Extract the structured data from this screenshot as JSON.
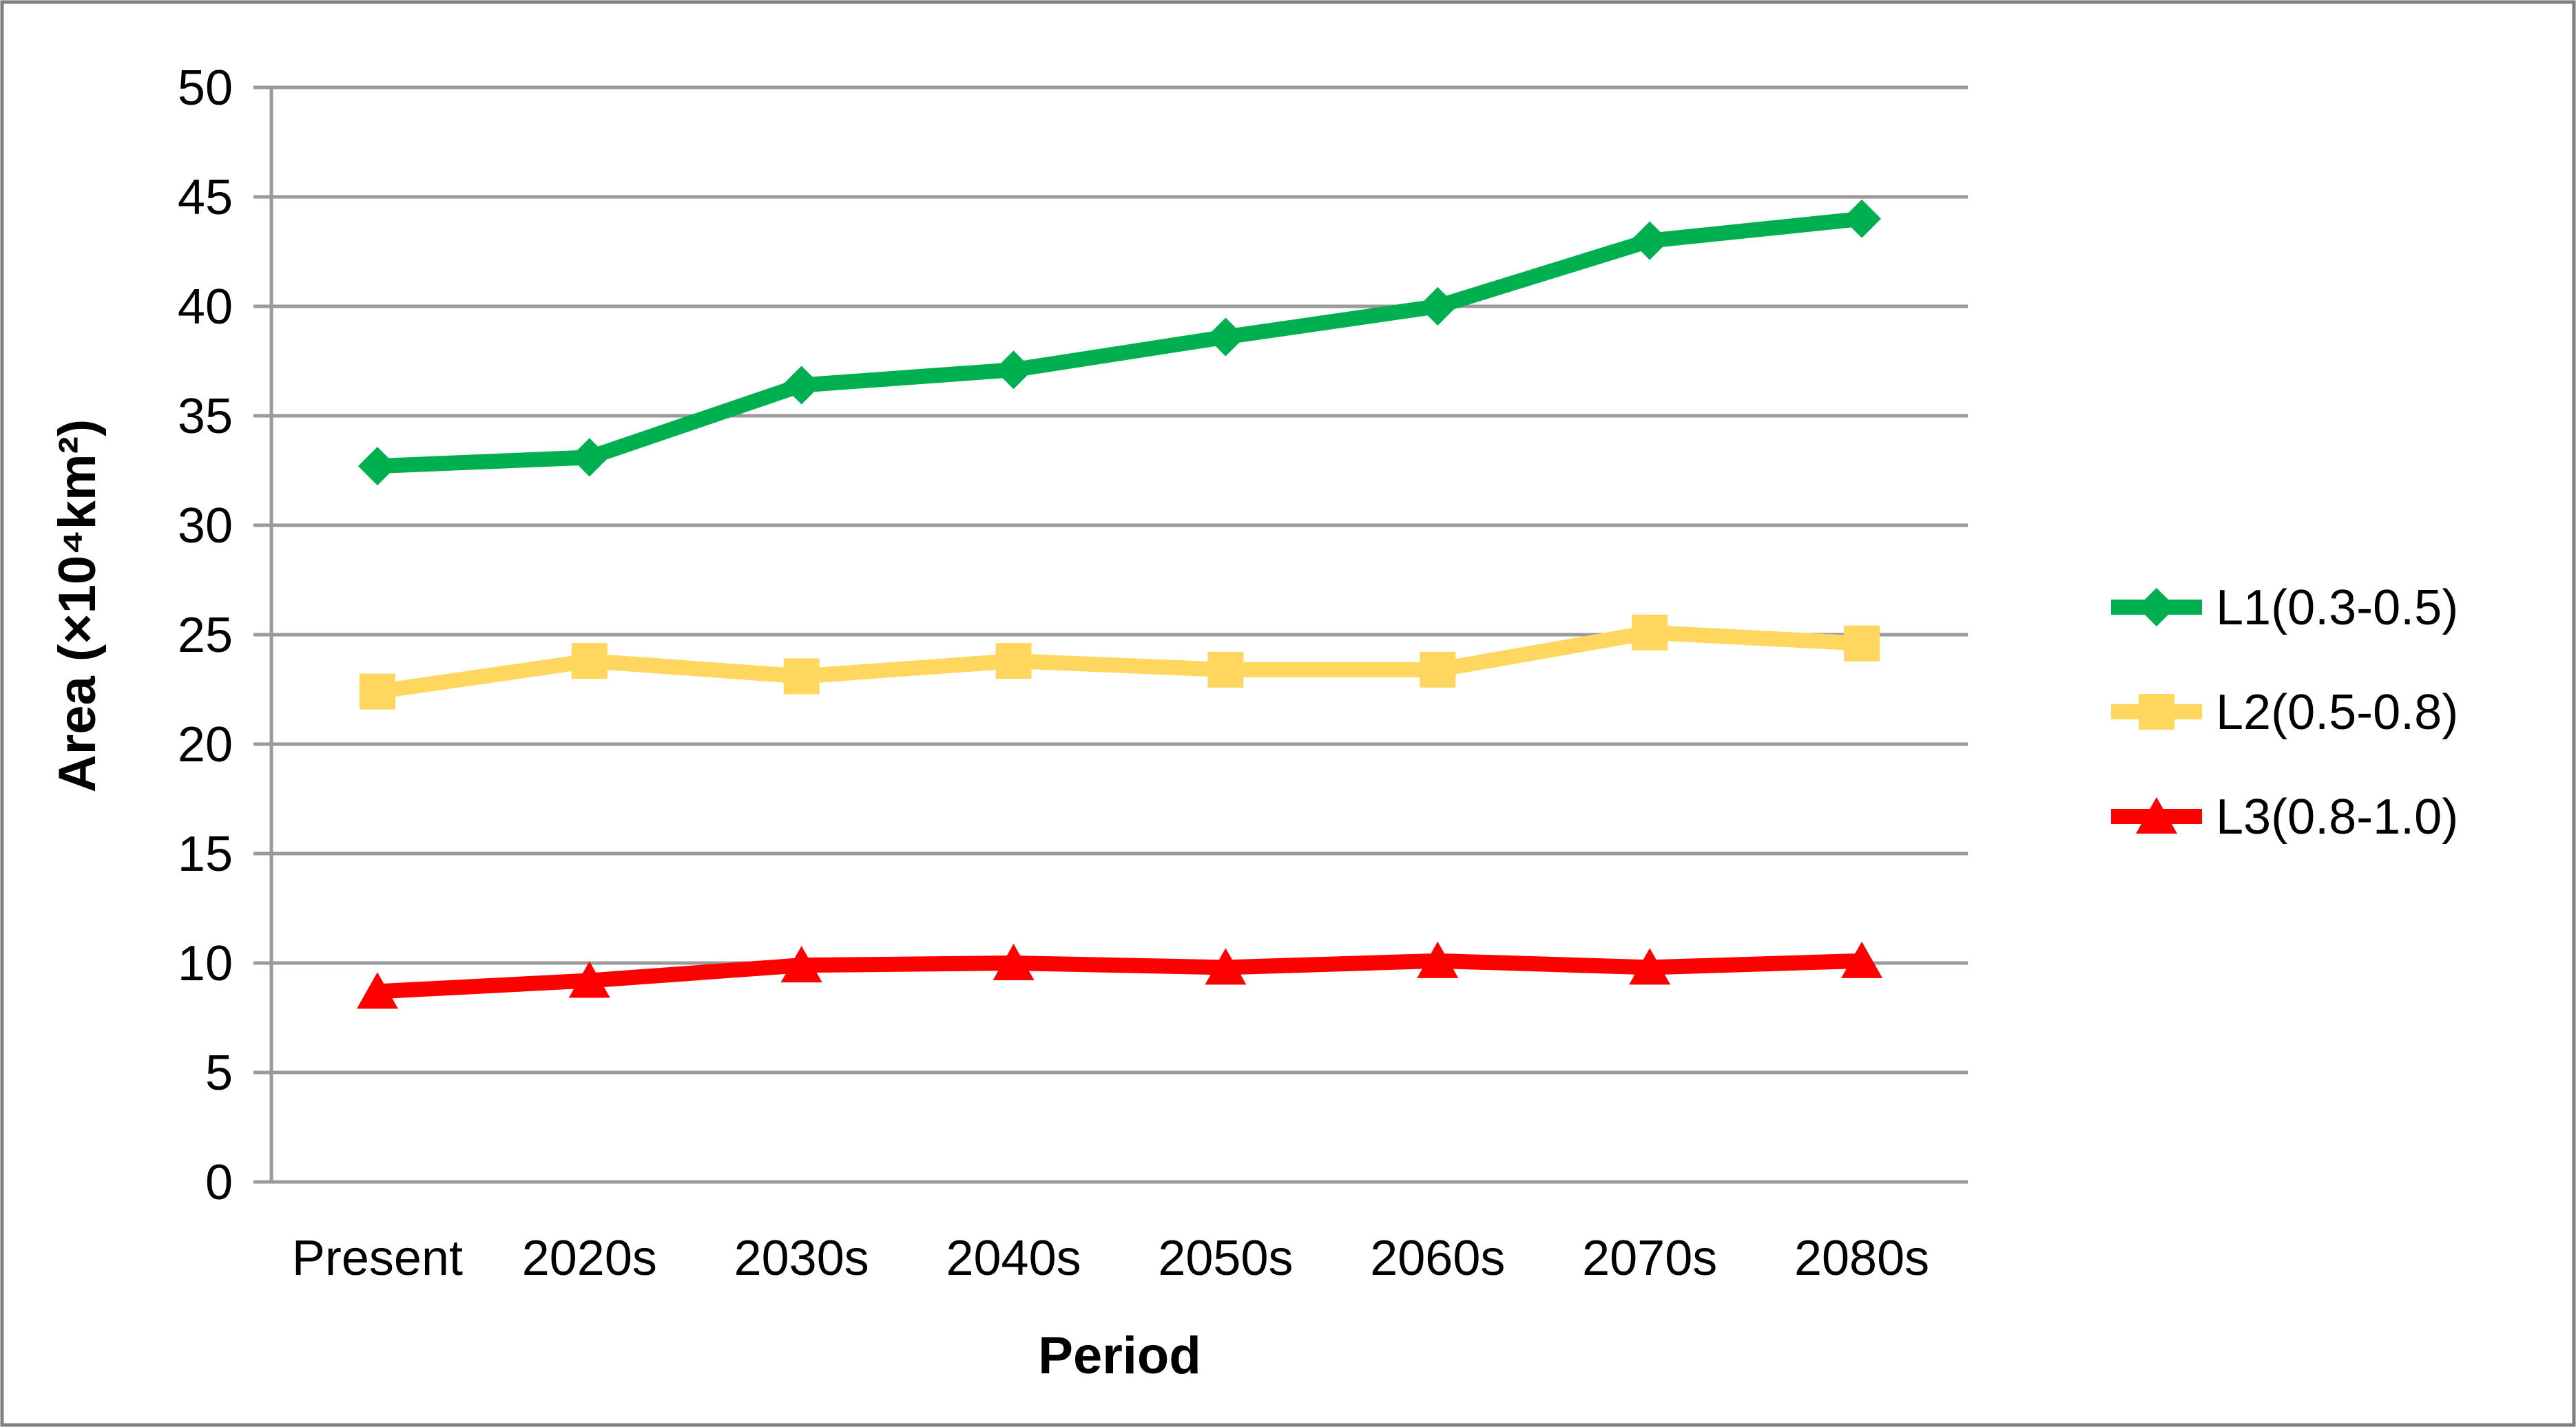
{
  "chart_data": {
    "type": "line",
    "title": "",
    "xlabel": "Period",
    "ylabel": "Area (×10⁴km²)",
    "ylim": [
      0,
      50
    ],
    "ytick_step": 5,
    "grid": "horizontal-gridlines-on",
    "legend_position": "right-middle",
    "grid_color": "#9A9A9A",
    "axis_color": "#9A9A9A",
    "border_color": "#7F7F7F",
    "background_color": "#FFFFFF",
    "categories": [
      "Present",
      "2020s",
      "2030s",
      "2040s",
      "2050s",
      "2060s",
      "2070s",
      "2080s"
    ],
    "series": [
      {
        "name": "L1(0.3-0.5)",
        "color": "#00B050",
        "marker": "diamond",
        "values": [
          32.7,
          33.1,
          36.4,
          37.1,
          38.6,
          40.0,
          43.0,
          44.0
        ]
      },
      {
        "name": "L2(0.5-0.8)",
        "color": "#FFD75E",
        "marker": "square",
        "values": [
          22.4,
          23.8,
          23.1,
          23.8,
          23.4,
          23.4,
          25.1,
          24.6
        ]
      },
      {
        "name": "L3(0.8-1.0)",
        "color": "#FF0000",
        "marker": "triangle",
        "values": [
          8.7,
          9.2,
          9.9,
          10.0,
          9.8,
          10.1,
          9.8,
          10.1
        ]
      }
    ]
  }
}
